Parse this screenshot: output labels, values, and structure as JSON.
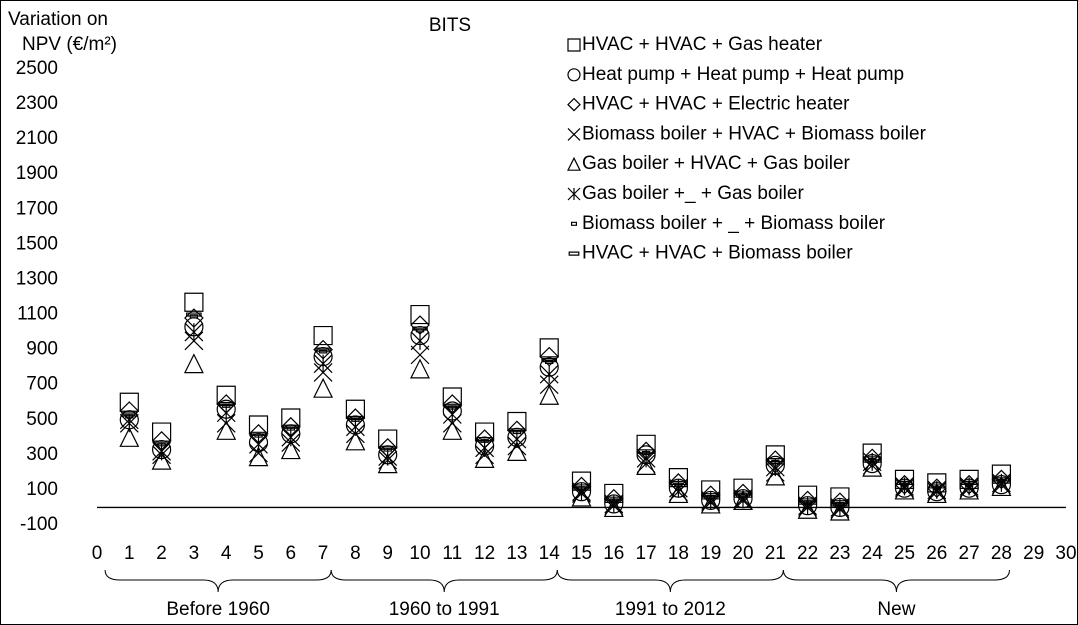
{
  "chart_data": {
    "type": "scatter",
    "title": "BITS",
    "ylabel": [
      "Variation on",
      "NPV (€/m²)"
    ],
    "x": [
      1,
      2,
      3,
      4,
      5,
      6,
      7,
      8,
      9,
      10,
      11,
      12,
      13,
      14,
      15,
      16,
      17,
      18,
      19,
      20,
      21,
      22,
      23,
      24,
      25,
      26,
      27,
      28
    ],
    "xlim": [
      0,
      30
    ],
    "xticks": [
      0,
      1,
      2,
      3,
      4,
      5,
      6,
      7,
      8,
      9,
      10,
      11,
      12,
      13,
      14,
      15,
      16,
      17,
      18,
      19,
      20,
      21,
      22,
      23,
      24,
      25,
      26,
      27,
      28,
      29,
      30
    ],
    "ylim": [
      -100,
      2500
    ],
    "yticks": [
      -100,
      100,
      300,
      500,
      700,
      900,
      1100,
      1300,
      1500,
      1700,
      1900,
      2100,
      2300,
      2500
    ],
    "legend": "top-right",
    "color": "#000000",
    "series": [
      {
        "name": "HVAC + HVAC + Gas heater",
        "marker": "square",
        "values": [
          600,
          430,
          1170,
          640,
          470,
          510,
          980,
          560,
          390,
          1100,
          630,
          430,
          490,
          910,
          150,
          80,
          360,
          170,
          100,
          110,
          300,
          70,
          60,
          310,
          160,
          140,
          160,
          190
        ]
      },
      {
        "name": "Heat pump + Heat pump + Heat pump",
        "marker": "circle",
        "values": [
          500,
          330,
          1030,
          560,
          370,
          420,
          860,
          470,
          300,
          980,
          550,
          350,
          400,
          800,
          90,
          20,
          300,
          110,
          40,
          50,
          240,
          10,
          0,
          250,
          110,
          90,
          110,
          130
        ]
      },
      {
        "name": "HVAC + HVAC + Electric heater",
        "marker": "diamond",
        "values": [
          550,
          380,
          1080,
          590,
          420,
          460,
          900,
          510,
          340,
          1040,
          590,
          390,
          440,
          860,
          120,
          50,
          320,
          140,
          70,
          80,
          270,
          40,
          30,
          280,
          130,
          110,
          130,
          160
        ]
      },
      {
        "name": "Biomass boiler + HVAC + Biomass boiler",
        "marker": "x",
        "values": [
          500,
          300,
          950,
          480,
          310,
          370,
          770,
          420,
          270,
          870,
          480,
          300,
          350,
          700,
          80,
          10,
          250,
          90,
          30,
          40,
          200,
          0,
          -10,
          240,
          110,
          90,
          110,
          130
        ]
      },
      {
        "name": "Gas boiler + HVAC + Gas boiler",
        "marker": "triangle",
        "values": [
          400,
          270,
          820,
          440,
          290,
          330,
          680,
          380,
          250,
          790,
          440,
          280,
          320,
          640,
          60,
          0,
          240,
          80,
          20,
          40,
          180,
          -10,
          -20,
          230,
          100,
          80,
          100,
          120
        ]
      },
      {
        "name": "Gas boiler +_ + Gas boiler",
        "marker": "asterisk",
        "values": [
          480,
          320,
          1000,
          540,
          360,
          400,
          820,
          460,
          290,
          950,
          530,
          340,
          390,
          760,
          90,
          20,
          280,
          110,
          40,
          50,
          230,
          10,
          0,
          260,
          120,
          100,
          120,
          140
        ]
      },
      {
        "name": " Biomass boiler + _ + Biomass boiler",
        "marker": "dash-small",
        "values": [
          520,
          360,
          1090,
          580,
          410,
          450,
          890,
          500,
          330,
          1010,
          570,
          380,
          430,
          830,
          110,
          40,
          310,
          130,
          60,
          70,
          260,
          30,
          20,
          270,
          130,
          110,
          130,
          150
        ]
      },
      {
        "name": "HVAC + HVAC + Biomass boiler",
        "marker": "dash",
        "values": [
          530,
          370,
          1100,
          590,
          420,
          460,
          900,
          510,
          340,
          1020,
          580,
          390,
          440,
          840,
          120,
          50,
          320,
          140,
          70,
          80,
          270,
          40,
          30,
          280,
          140,
          120,
          140,
          160
        ]
      }
    ],
    "groups": [
      {
        "label": "Before 1960",
        "start": 1,
        "end": 7
      },
      {
        "label": "1960 to 1991",
        "start": 8,
        "end": 14
      },
      {
        "label": "1991 to 2012",
        "start": 15,
        "end": 21
      },
      {
        "label": "New",
        "start": 22,
        "end": 28
      }
    ]
  }
}
